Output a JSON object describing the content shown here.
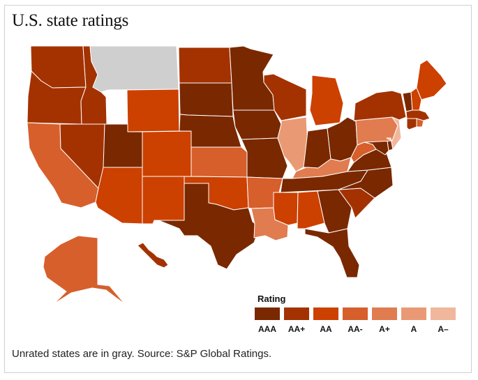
{
  "title": "U.S. state ratings",
  "legend": {
    "title": "Rating",
    "items": [
      {
        "label": "AAA",
        "color": "#7a2800"
      },
      {
        "label": "AA+",
        "color": "#a33200"
      },
      {
        "label": "AA",
        "color": "#cc4000"
      },
      {
        "label": "AA-",
        "color": "#d65f2c"
      },
      {
        "label": "A+",
        "color": "#e07c4f"
      },
      {
        "label": "A",
        "color": "#e99a74"
      },
      {
        "label": "A–",
        "color": "#f0b79d"
      }
    ]
  },
  "unrated_color": "#cfcfcf",
  "state_ratings": {
    "AAA": [
      "Utah",
      "South Dakota",
      "Nebraska",
      "Minnesota",
      "Iowa",
      "Missouri",
      "Texas",
      "Indiana",
      "Ohio",
      "Tennessee",
      "Virginia",
      "Maryland",
      "Georgia",
      "Florida",
      "North Carolina",
      "Delaware",
      "Vermont"
    ],
    "AA+": [
      "Washington",
      "Oregon",
      "Idaho",
      "Nevada",
      "North Dakota",
      "Wisconsin",
      "New York",
      "Massachusetts",
      "Connecticut",
      "South Carolina",
      "Hawaii"
    ],
    "AA": [
      "Wyoming",
      "Colorado",
      "Arizona",
      "New Mexico",
      "Oklahoma",
      "Michigan",
      "Mississippi",
      "Alabama",
      "New Hampshire",
      "Maine"
    ],
    "AA-": [
      "California",
      "Kansas",
      "Arkansas",
      "West Virginia",
      "Rhode Island",
      "Alaska"
    ],
    "A+": [
      "Louisiana",
      "Kentucky",
      "Pennsylvania"
    ],
    "A": [
      "Illinois"
    ],
    "A–": [
      "New Jersey"
    ],
    "Unrated": [
      "Montana"
    ]
  },
  "footnote": "Unrated states are in gray. Source: S&P Global Ratings."
}
